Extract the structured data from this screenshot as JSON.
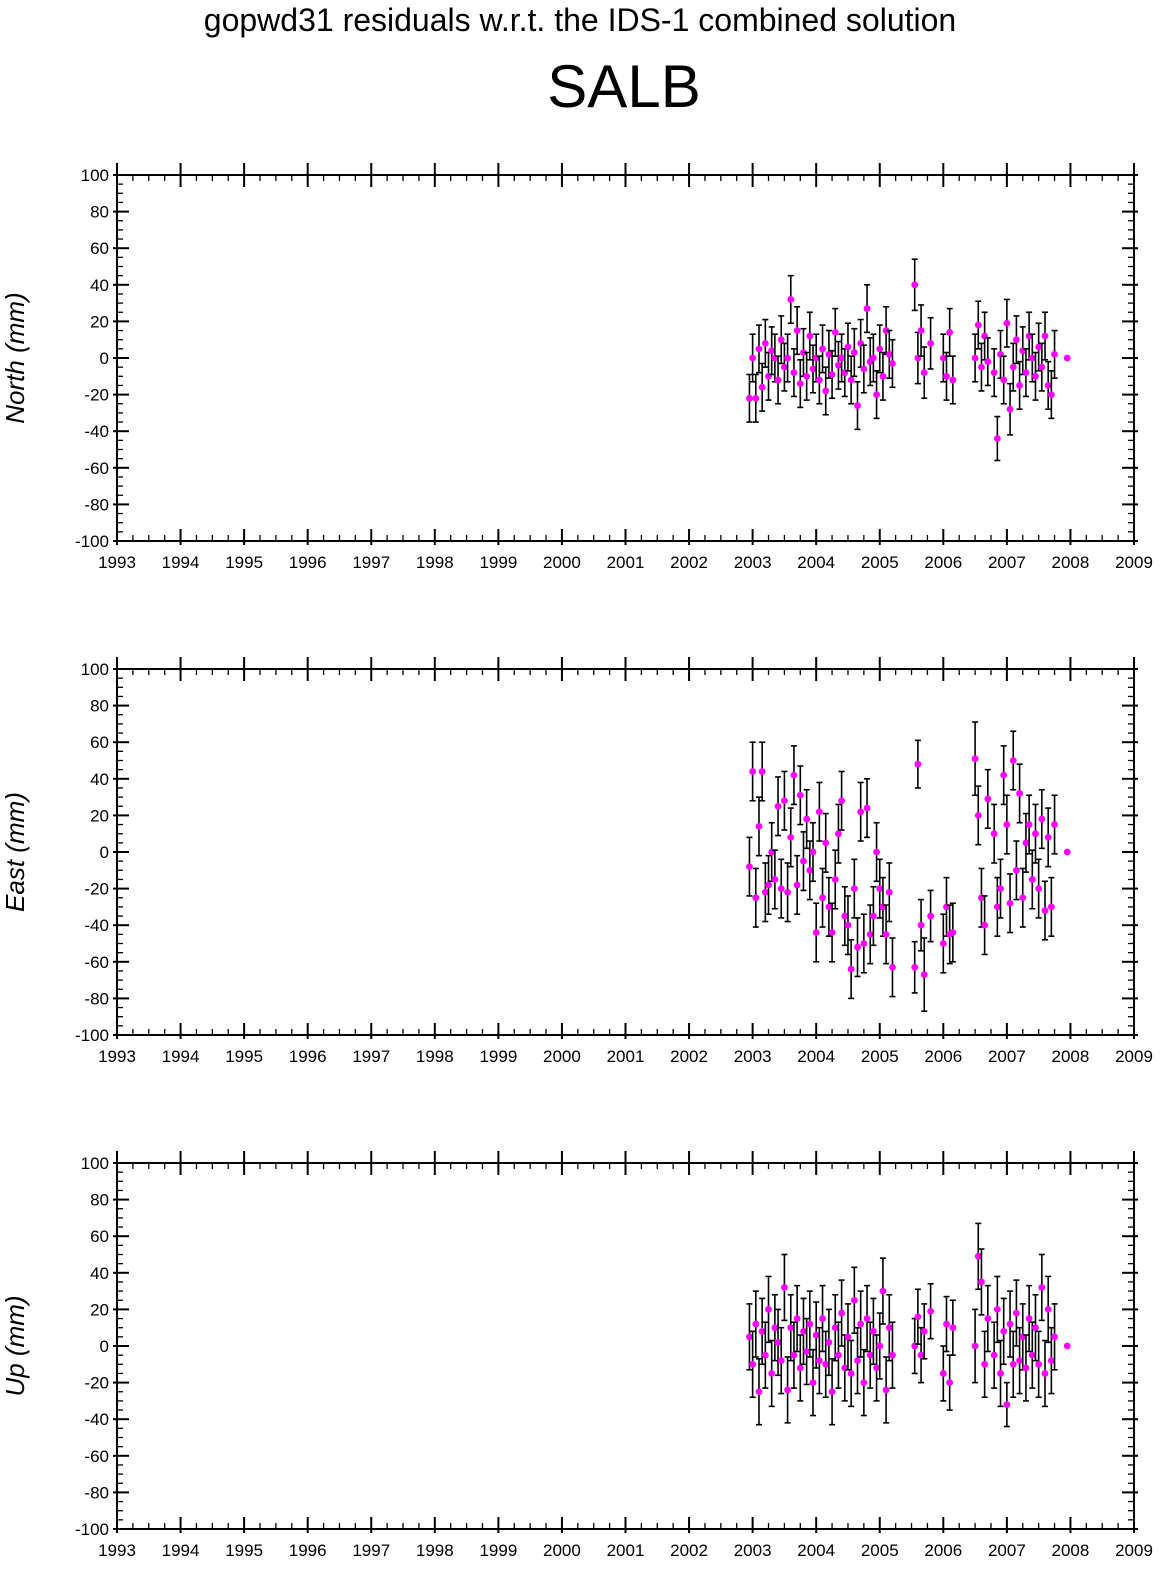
{
  "figure": {
    "title": "gopwd31 residuals w.r.t. the IDS-1 combined solution",
    "station": "SALB"
  },
  "chart_data": [
    {
      "type": "scatter",
      "ylabel": "North (mm)",
      "xlabel": "",
      "xlim": [
        1993,
        2009
      ],
      "ylim": [
        -100,
        100
      ],
      "xticks": [
        "1993",
        "1994",
        "1995",
        "1996",
        "1997",
        "1998",
        "1999",
        "2000",
        "2001",
        "2002",
        "2003",
        "2004",
        "2005",
        "2006",
        "2007",
        "2008",
        "2009"
      ],
      "yticks": [
        "100",
        "80",
        "60",
        "40",
        "20",
        "0",
        "-20",
        "-40",
        "-60",
        "-80",
        "-100"
      ],
      "error_bars": true,
      "marker_color": "#ff00ff",
      "x": [
        2002.95,
        2003.0,
        2003.05,
        2003.1,
        2003.15,
        2003.2,
        2003.25,
        2003.3,
        2003.35,
        2003.4,
        2003.45,
        2003.5,
        2003.55,
        2003.6,
        2003.65,
        2003.7,
        2003.75,
        2003.8,
        2003.85,
        2003.9,
        2003.95,
        2004.0,
        2004.05,
        2004.1,
        2004.15,
        2004.2,
        2004.25,
        2004.3,
        2004.35,
        2004.4,
        2004.45,
        2004.5,
        2004.55,
        2004.6,
        2004.65,
        2004.7,
        2004.75,
        2004.8,
        2004.85,
        2004.9,
        2004.95,
        2005.0,
        2005.05,
        2005.1,
        2005.15,
        2005.2,
        2005.55,
        2005.6,
        2005.65,
        2005.7,
        2005.8,
        2006.0,
        2006.05,
        2006.1,
        2006.15,
        2006.5,
        2006.55,
        2006.6,
        2006.65,
        2006.7,
        2006.8,
        2006.85,
        2006.9,
        2006.95,
        2007.0,
        2007.05,
        2007.1,
        2007.15,
        2007.2,
        2007.25,
        2007.3,
        2007.35,
        2007.4,
        2007.45,
        2007.5,
        2007.55,
        2007.6,
        2007.65,
        2007.7,
        2007.75,
        2007.95
      ],
      "y": [
        -22,
        0,
        -22,
        5,
        -16,
        8,
        -10,
        4,
        0,
        -12,
        10,
        -5,
        0,
        32,
        -8,
        15,
        -14,
        3,
        -10,
        12,
        -6,
        0,
        -12,
        5,
        -18,
        2,
        -9,
        14,
        -4,
        0,
        -8,
        6,
        -12,
        3,
        -26,
        8,
        -6,
        27,
        -2,
        0,
        -20,
        5,
        -10,
        15,
        2,
        -3,
        40,
        0,
        15,
        -8,
        8,
        0,
        -10,
        14,
        -12,
        0,
        18,
        -5,
        12,
        -2,
        -8,
        -44,
        2,
        -12,
        19,
        -28,
        -5,
        10,
        -15,
        4,
        -8,
        12,
        0,
        -10,
        6,
        -5,
        12,
        -15,
        -20,
        2,
        0
      ],
      "err": [
        13,
        13,
        13,
        13,
        13,
        13,
        13,
        13,
        13,
        13,
        13,
        13,
        13,
        13,
        13,
        13,
        13,
        13,
        13,
        13,
        13,
        13,
        13,
        13,
        13,
        13,
        13,
        13,
        13,
        13,
        13,
        13,
        13,
        13,
        13,
        13,
        13,
        13,
        13,
        13,
        13,
        13,
        13,
        13,
        13,
        13,
        14,
        14,
        14,
        14,
        14,
        13,
        13,
        13,
        13,
        13,
        13,
        13,
        13,
        13,
        13,
        12,
        13,
        13,
        13,
        14,
        13,
        13,
        13,
        13,
        13,
        13,
        13,
        13,
        13,
        13,
        13,
        13,
        13,
        13,
        0
      ]
    },
    {
      "type": "scatter",
      "ylabel": "East (mm)",
      "xlabel": "",
      "xlim": [
        1993,
        2009
      ],
      "ylim": [
        -100,
        100
      ],
      "xticks": [
        "1993",
        "1994",
        "1995",
        "1996",
        "1997",
        "1998",
        "1999",
        "2000",
        "2001",
        "2002",
        "2003",
        "2004",
        "2005",
        "2006",
        "2007",
        "2008",
        "2009"
      ],
      "yticks": [
        "100",
        "80",
        "60",
        "40",
        "20",
        "0",
        "-20",
        "-40",
        "-60",
        "-80",
        "-100"
      ],
      "error_bars": true,
      "marker_color": "#ff00ff",
      "x": [
        2002.95,
        2003.0,
        2003.05,
        2003.1,
        2003.15,
        2003.2,
        2003.25,
        2003.3,
        2003.35,
        2003.4,
        2003.45,
        2003.5,
        2003.55,
        2003.6,
        2003.65,
        2003.7,
        2003.75,
        2003.8,
        2003.85,
        2003.9,
        2003.95,
        2004.0,
        2004.05,
        2004.1,
        2004.15,
        2004.2,
        2004.25,
        2004.3,
        2004.35,
        2004.4,
        2004.45,
        2004.5,
        2004.55,
        2004.6,
        2004.65,
        2004.7,
        2004.75,
        2004.8,
        2004.85,
        2004.9,
        2004.95,
        2005.0,
        2005.05,
        2005.1,
        2005.15,
        2005.2,
        2005.55,
        2005.6,
        2005.65,
        2005.7,
        2005.8,
        2006.0,
        2006.05,
        2006.1,
        2006.15,
        2006.5,
        2006.55,
        2006.6,
        2006.65,
        2006.7,
        2006.8,
        2006.85,
        2006.9,
        2006.95,
        2007.0,
        2007.05,
        2007.1,
        2007.15,
        2007.2,
        2007.25,
        2007.3,
        2007.35,
        2007.4,
        2007.45,
        2007.5,
        2007.55,
        2007.6,
        2007.65,
        2007.7,
        2007.75,
        2007.95
      ],
      "y": [
        -8,
        44,
        -25,
        14,
        44,
        -22,
        -18,
        0,
        -15,
        25,
        -20,
        28,
        -22,
        8,
        42,
        -18,
        31,
        -5,
        18,
        -10,
        0,
        -44,
        22,
        -25,
        5,
        -30,
        -44,
        -15,
        10,
        28,
        -35,
        -40,
        -64,
        -20,
        -52,
        22,
        -50,
        24,
        -45,
        -35,
        0,
        -20,
        -30,
        -45,
        -22,
        -63,
        -63,
        48,
        -40,
        -67,
        -35,
        -50,
        -30,
        -45,
        -44,
        51,
        20,
        -25,
        -40,
        29,
        10,
        -30,
        -20,
        42,
        15,
        -28,
        50,
        -10,
        32,
        -25,
        5,
        15,
        -15,
        10,
        -20,
        18,
        -32,
        8,
        -30,
        15,
        0
      ],
      "err": [
        16,
        16,
        16,
        16,
        16,
        16,
        16,
        16,
        16,
        16,
        16,
        16,
        16,
        16,
        16,
        16,
        16,
        16,
        16,
        16,
        16,
        16,
        16,
        16,
        16,
        16,
        16,
        16,
        16,
        16,
        16,
        16,
        16,
        16,
        16,
        16,
        16,
        16,
        16,
        16,
        16,
        16,
        16,
        16,
        16,
        16,
        14,
        13,
        14,
        20,
        14,
        16,
        16,
        16,
        16,
        20,
        16,
        16,
        16,
        16,
        16,
        16,
        16,
        16,
        16,
        16,
        16,
        16,
        16,
        16,
        16,
        16,
        16,
        16,
        16,
        16,
        16,
        16,
        16,
        16,
        0
      ]
    },
    {
      "type": "scatter",
      "ylabel": "Up (mm)",
      "xlabel": "",
      "xlim": [
        1993,
        2009
      ],
      "ylim": [
        -100,
        100
      ],
      "xticks": [
        "1993",
        "1994",
        "1995",
        "1996",
        "1997",
        "1998",
        "1999",
        "2000",
        "2001",
        "2002",
        "2003",
        "2004",
        "2005",
        "2006",
        "2007",
        "2008",
        "2009"
      ],
      "yticks": [
        "100",
        "80",
        "60",
        "40",
        "20",
        "0",
        "-20",
        "-40",
        "-60",
        "-80",
        "-100"
      ],
      "error_bars": true,
      "marker_color": "#ff00ff",
      "x": [
        2002.95,
        2003.0,
        2003.05,
        2003.1,
        2003.15,
        2003.2,
        2003.25,
        2003.3,
        2003.35,
        2003.4,
        2003.45,
        2003.5,
        2003.55,
        2003.6,
        2003.65,
        2003.7,
        2003.75,
        2003.8,
        2003.85,
        2003.9,
        2003.95,
        2004.0,
        2004.05,
        2004.1,
        2004.15,
        2004.2,
        2004.25,
        2004.3,
        2004.35,
        2004.4,
        2004.45,
        2004.5,
        2004.55,
        2004.6,
        2004.65,
        2004.7,
        2004.75,
        2004.8,
        2004.85,
        2004.9,
        2004.95,
        2005.0,
        2005.05,
        2005.1,
        2005.15,
        2005.2,
        2005.55,
        2005.6,
        2005.65,
        2005.7,
        2005.8,
        2006.0,
        2006.05,
        2006.1,
        2006.15,
        2006.5,
        2006.55,
        2006.6,
        2006.65,
        2006.7,
        2006.8,
        2006.85,
        2006.9,
        2006.95,
        2007.0,
        2007.05,
        2007.1,
        2007.15,
        2007.2,
        2007.25,
        2007.3,
        2007.35,
        2007.4,
        2007.45,
        2007.5,
        2007.55,
        2007.6,
        2007.65,
        2007.7,
        2007.75,
        2007.95
      ],
      "y": [
        5,
        -10,
        12,
        -25,
        8,
        -5,
        20,
        -15,
        10,
        2,
        -8,
        32,
        -24,
        10,
        -5,
        15,
        -12,
        8,
        -3,
        12,
        -20,
        6,
        -8,
        15,
        -10,
        2,
        -25,
        10,
        -5,
        18,
        -12,
        5,
        -15,
        25,
        -8,
        12,
        -20,
        15,
        -5,
        8,
        -12,
        0,
        30,
        -24,
        10,
        -5,
        0,
        16,
        -5,
        8,
        19,
        -15,
        12,
        -20,
        10,
        0,
        49,
        35,
        -10,
        15,
        -5,
        20,
        -15,
        8,
        -32,
        12,
        -10,
        18,
        -8,
        5,
        -12,
        15,
        -5,
        10,
        -10,
        32,
        -15,
        20,
        -8,
        5,
        0
      ],
      "err": [
        18,
        18,
        18,
        18,
        18,
        18,
        18,
        18,
        18,
        18,
        18,
        18,
        18,
        18,
        18,
        18,
        18,
        18,
        18,
        18,
        18,
        18,
        18,
        18,
        18,
        18,
        18,
        18,
        18,
        18,
        18,
        18,
        18,
        18,
        18,
        18,
        18,
        18,
        18,
        18,
        18,
        18,
        18,
        18,
        18,
        18,
        15,
        15,
        15,
        15,
        15,
        15,
        15,
        15,
        15,
        20,
        18,
        18,
        18,
        18,
        18,
        18,
        18,
        18,
        12,
        18,
        18,
        18,
        18,
        18,
        18,
        18,
        18,
        18,
        18,
        18,
        18,
        18,
        18,
        18,
        0
      ]
    }
  ]
}
